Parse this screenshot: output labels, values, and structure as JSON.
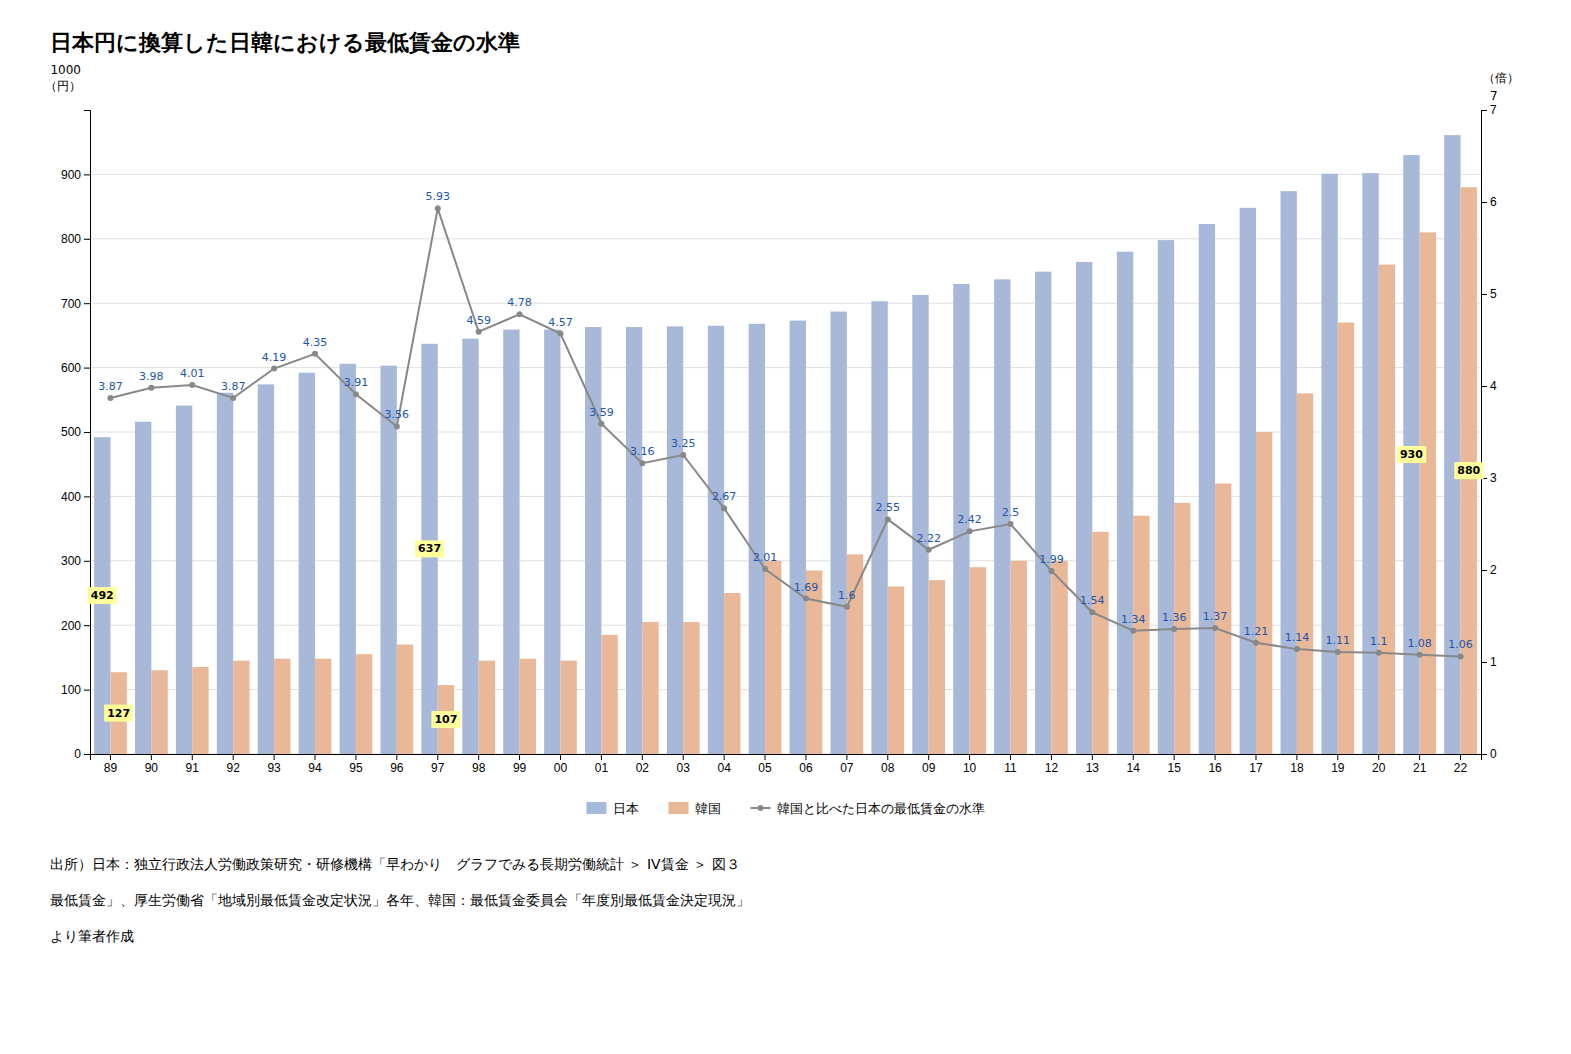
{
  "chart_data": {
    "type": "bar",
    "title": "日本円に換算した日韓における最低賃金の水準",
    "categories": [
      "89",
      "90",
      "91",
      "92",
      "93",
      "94",
      "95",
      "96",
      "97",
      "98",
      "99",
      "00",
      "01",
      "02",
      "03",
      "04",
      "05",
      "06",
      "07",
      "08",
      "09",
      "10",
      "11",
      "12",
      "13",
      "14",
      "15",
      "16",
      "17",
      "18",
      "19",
      "20",
      "21",
      "22"
    ],
    "series": [
      {
        "name": "日本",
        "type": "bar",
        "color": "#a8b8d8",
        "values": [
          492,
          516,
          541,
          561,
          574,
          592,
          606,
          603,
          637,
          645,
          659,
          659,
          663,
          663,
          664,
          665,
          668,
          673,
          687,
          703,
          713,
          730,
          737,
          749,
          764,
          780,
          798,
          823,
          848,
          874,
          901,
          902,
          930,
          961
        ],
        "value_labels": [
          "492",
          null,
          null,
          null,
          null,
          null,
          null,
          null,
          "637",
          null,
          null,
          null,
          null,
          null,
          null,
          null,
          null,
          null,
          null,
          null,
          null,
          null,
          null,
          null,
          null,
          null,
          null,
          null,
          null,
          null,
          null,
          null,
          "930",
          null
        ]
      },
      {
        "name": "韓国",
        "type": "bar",
        "color": "#e8b898",
        "values": [
          127,
          130,
          135,
          145,
          148,
          148,
          155,
          170,
          107,
          145,
          148,
          145,
          185,
          205,
          205,
          250,
          300,
          285,
          310,
          260,
          270,
          290,
          300,
          300,
          345,
          370,
          390,
          420,
          500,
          560,
          670,
          760,
          810,
          880
        ],
        "value_labels": [
          "127",
          null,
          null,
          null,
          null,
          null,
          null,
          null,
          "107",
          null,
          null,
          null,
          null,
          null,
          null,
          null,
          null,
          null,
          null,
          null,
          null,
          null,
          null,
          null,
          null,
          null,
          null,
          null,
          null,
          null,
          null,
          null,
          null,
          "880"
        ]
      },
      {
        "name": "韓国と比べた日本の最低賃金の水準",
        "type": "line",
        "axis": "y2",
        "color": "#888888",
        "marker": "circle",
        "line_style": "solid",
        "data_labels": true,
        "values": [
          3.87,
          3.98,
          4.01,
          3.87,
          4.19,
          4.35,
          3.91,
          3.56,
          5.93,
          4.59,
          4.78,
          4.57,
          3.59,
          3.16,
          3.25,
          2.67,
          2.01,
          1.69,
          1.6,
          2.55,
          2.22,
          2.42,
          2.5,
          1.99,
          1.54,
          1.34,
          1.36,
          1.37,
          1.21,
          1.14,
          1.11,
          1.1,
          1.08,
          1.06
        ]
      }
    ],
    "ylim": [
      0,
      1000
    ],
    "yticks": [
      0,
      100,
      200,
      300,
      400,
      500,
      600,
      700,
      800,
      900
    ],
    "y2lim": [
      0,
      7
    ],
    "y2ticks": [
      0,
      1,
      2,
      3,
      4,
      5,
      6,
      7
    ],
    "grid": true,
    "legend": "bottom",
    "annotations": [
      "1000\n（円）",
      "7",
      "（倍）"
    ],
    "source": [
      "出所）日本：独立行政法人労働政策研究・研修機構「早わかり　グラフでみる長期労働統計 ＞ IV賃金 ＞ 図３",
      "最低賃金」、厚生労働省「地域別最低賃金改定状況」各年、韓国：最低賃金委員会「年度別最低賃金決定現況」",
      "より筆者作成"
    ]
  }
}
